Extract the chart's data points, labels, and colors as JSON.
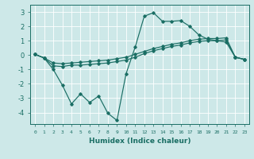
{
  "background_color": "#cde8e8",
  "grid_color": "#ffffff",
  "line_color": "#1a6e64",
  "xlabel": "Humidex (Indice chaleur)",
  "xlim": [
    -0.5,
    23.5
  ],
  "ylim": [
    -4.8,
    3.5
  ],
  "yticks": [
    -4,
    -3,
    -2,
    -1,
    0,
    1,
    2,
    3
  ],
  "xticks": [
    0,
    1,
    2,
    3,
    4,
    5,
    6,
    7,
    8,
    9,
    10,
    11,
    12,
    13,
    14,
    15,
    16,
    17,
    18,
    19,
    20,
    21,
    22,
    23
  ],
  "lines": [
    {
      "x": [
        0,
        1,
        2,
        3,
        4,
        5,
        6,
        7,
        8,
        9,
        10,
        11,
        12,
        13,
        14,
        15,
        16,
        17,
        18,
        19,
        20,
        21,
        22,
        23
      ],
      "y": [
        0.05,
        -0.2,
        -1.0,
        -2.1,
        -3.4,
        -2.7,
        -3.3,
        -2.85,
        -4.05,
        -4.55,
        -1.3,
        0.55,
        2.7,
        2.95,
        2.35,
        2.35,
        2.4,
        2.0,
        1.4,
        1.1,
        1.0,
        0.9,
        -0.15,
        -0.3
      ]
    },
    {
      "x": [
        0,
        1,
        2,
        3,
        4,
        5,
        6,
        7,
        8,
        9,
        10,
        11,
        12,
        13,
        14,
        15,
        16,
        17,
        18,
        19,
        20,
        21,
        22,
        23
      ],
      "y": [
        0.05,
        -0.2,
        -0.55,
        -0.6,
        -0.55,
        -0.5,
        -0.45,
        -0.4,
        -0.35,
        -0.25,
        -0.15,
        0.05,
        0.25,
        0.45,
        0.6,
        0.75,
        0.85,
        1.0,
        1.1,
        1.15,
        1.15,
        1.2,
        -0.15,
        -0.3
      ]
    },
    {
      "x": [
        0,
        1,
        2,
        3,
        4,
        5,
        6,
        7,
        8,
        9,
        10,
        11,
        12,
        13,
        14,
        15,
        16,
        17,
        18,
        19,
        20,
        21,
        22,
        23
      ],
      "y": [
        0.05,
        -0.2,
        -0.75,
        -0.8,
        -0.7,
        -0.7,
        -0.65,
        -0.6,
        -0.55,
        -0.45,
        -0.35,
        -0.15,
        0.1,
        0.3,
        0.45,
        0.6,
        0.7,
        0.85,
        0.95,
        1.0,
        1.0,
        1.05,
        -0.15,
        -0.3
      ]
    }
  ]
}
